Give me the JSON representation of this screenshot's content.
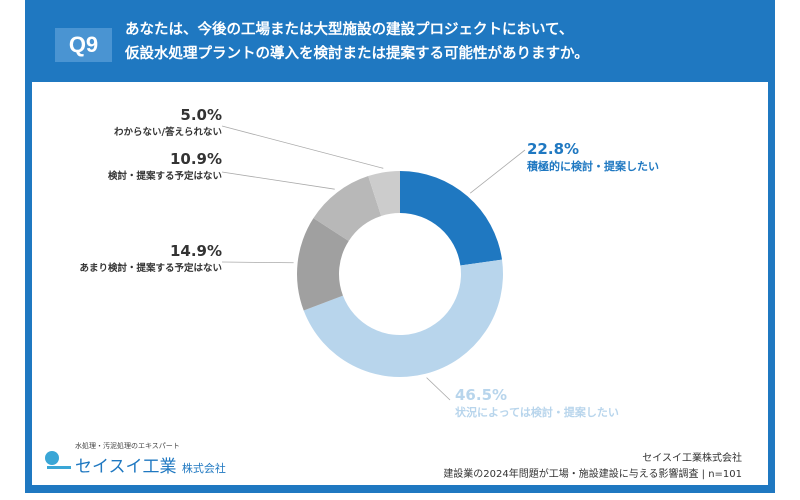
{
  "header": {
    "badge": "Q9",
    "question_line1": "あなたは、今後の工場または大型施設の建設プロジェクトにおいて、",
    "question_line2": "仮設水処理プラントの導入を検討または提案する可能性がありますか。"
  },
  "chart_data": {
    "type": "pie",
    "donut": true,
    "slices": [
      {
        "label": "積極的に検討・提案したい",
        "value": 22.8,
        "display": "22.8%",
        "color": "#1f78c1"
      },
      {
        "label": "状況によっては検討・提案したい",
        "value": 46.5,
        "display": "46.5%",
        "color": "#b8d5ec"
      },
      {
        "label": "あまり検討・提案する予定はない",
        "value": 14.9,
        "display": "14.9%",
        "color": "#a0a0a0"
      },
      {
        "label": "検討・提案する予定はない",
        "value": 10.9,
        "display": "10.9%",
        "color": "#b8b8b8"
      },
      {
        "label": "わからない/答えられない",
        "value": 5.0,
        "display": "5.0%",
        "color": "#cccccc"
      }
    ]
  },
  "footer": {
    "logo_tagline": "水処理・汚泥処理のエキスパート",
    "logo_name": "セイスイ工業",
    "logo_suffix": "株式会社",
    "company": "セイスイ工業株式会社",
    "survey": "建設業の2024年問題が工場・施設建設に与える影響調査 | n=101"
  }
}
